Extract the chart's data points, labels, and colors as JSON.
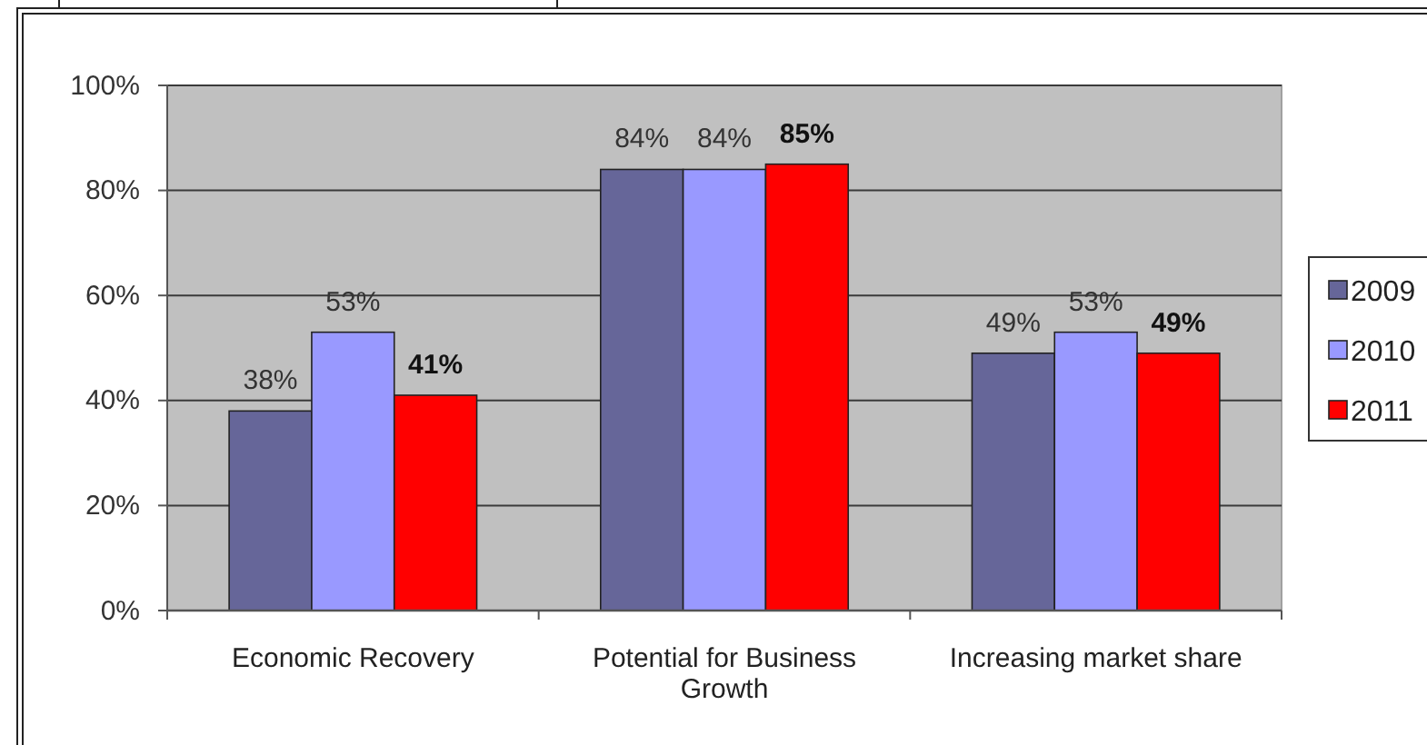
{
  "chart_data": {
    "type": "bar",
    "categories": [
      "Economic Recovery",
      "Potential for Business Growth",
      "Increasing market share"
    ],
    "series": [
      {
        "name": "2009",
        "color": "#666699",
        "values": [
          38,
          84,
          49
        ],
        "value_labels": [
          "38%",
          "84%",
          "49%"
        ]
      },
      {
        "name": "2010",
        "color": "#9999ff",
        "values": [
          53,
          84,
          53
        ],
        "value_labels": [
          "53%",
          "84%",
          "53%"
        ]
      },
      {
        "name": "2011",
        "color": "#ff0000",
        "values": [
          41,
          85,
          49
        ],
        "value_labels": [
          "41%",
          "85%",
          "49%"
        ]
      }
    ],
    "ylim": [
      0,
      100
    ],
    "yticks": [
      {
        "value": 0,
        "label": "0%"
      },
      {
        "value": 20,
        "label": "20%"
      },
      {
        "value": 40,
        "label": "40%"
      },
      {
        "value": 60,
        "label": "60%"
      },
      {
        "value": 80,
        "label": "80%"
      },
      {
        "value": 100,
        "label": "100%"
      }
    ],
    "grid": "y",
    "legend": "right"
  }
}
